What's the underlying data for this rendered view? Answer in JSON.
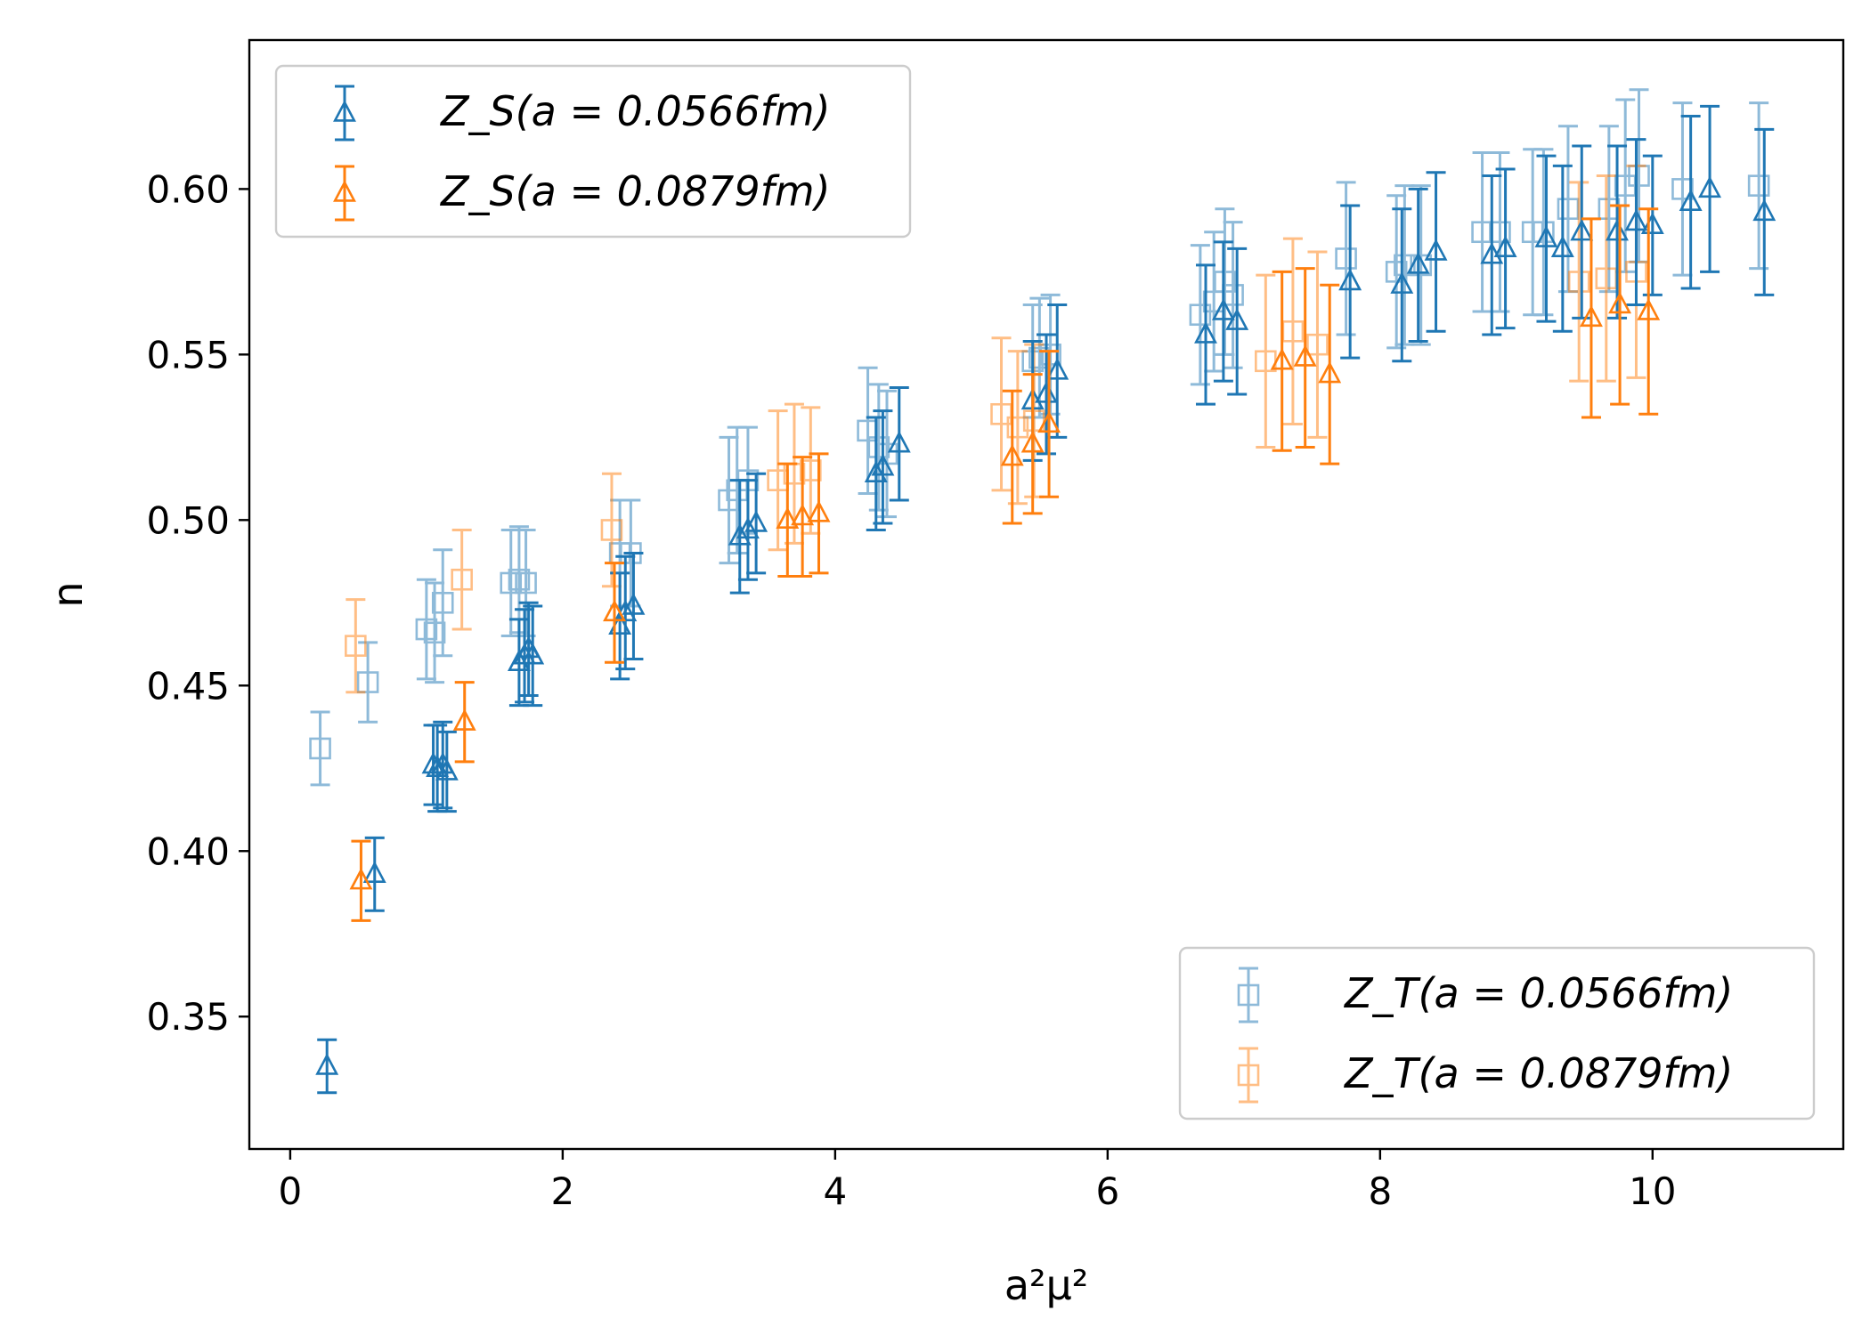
{
  "chart_data": {
    "type": "scatter",
    "title": "",
    "xlabel": "a²μ²",
    "ylabel": "n",
    "xlim": [
      -0.3,
      11.4
    ],
    "ylim": [
      0.31,
      0.645
    ],
    "xticks": [
      0,
      2,
      4,
      6,
      8,
      10
    ],
    "yticks": [
      0.35,
      0.4,
      0.45,
      0.5,
      0.55,
      0.6
    ],
    "xtick_labels": [
      "0",
      "2",
      "4",
      "6",
      "8",
      "10"
    ],
    "ytick_labels": [
      "0.35",
      "0.40",
      "0.45",
      "0.50",
      "0.55",
      "0.60"
    ],
    "grid": false,
    "series": [
      {
        "name": "Z_S(a = 0.0566fm)",
        "legend": "upper left",
        "color": "#1f77b4",
        "marker": "triangle",
        "alpha": 1.0,
        "points": [
          {
            "x": 0.27,
            "y": 0.335,
            "err": 0.008
          },
          {
            "x": 0.62,
            "y": 0.393,
            "err": 0.011
          },
          {
            "x": 1.05,
            "y": 0.426,
            "err": 0.012
          },
          {
            "x": 1.08,
            "y": 0.425,
            "err": 0.013
          },
          {
            "x": 1.12,
            "y": 0.426,
            "err": 0.013
          },
          {
            "x": 1.15,
            "y": 0.424,
            "err": 0.012
          },
          {
            "x": 1.68,
            "y": 0.457,
            "err": 0.013
          },
          {
            "x": 1.72,
            "y": 0.459,
            "err": 0.014
          },
          {
            "x": 1.75,
            "y": 0.461,
            "err": 0.014
          },
          {
            "x": 1.78,
            "y": 0.459,
            "err": 0.015
          },
          {
            "x": 2.42,
            "y": 0.468,
            "err": 0.016
          },
          {
            "x": 2.46,
            "y": 0.472,
            "err": 0.017
          },
          {
            "x": 2.52,
            "y": 0.474,
            "err": 0.016
          },
          {
            "x": 3.3,
            "y": 0.495,
            "err": 0.017
          },
          {
            "x": 3.36,
            "y": 0.497,
            "err": 0.015
          },
          {
            "x": 3.42,
            "y": 0.499,
            "err": 0.015
          },
          {
            "x": 4.3,
            "y": 0.514,
            "err": 0.017
          },
          {
            "x": 4.35,
            "y": 0.516,
            "err": 0.017
          },
          {
            "x": 4.47,
            "y": 0.523,
            "err": 0.017
          },
          {
            "x": 5.45,
            "y": 0.536,
            "err": 0.018
          },
          {
            "x": 5.55,
            "y": 0.538,
            "err": 0.018
          },
          {
            "x": 5.63,
            "y": 0.545,
            "err": 0.02
          },
          {
            "x": 6.72,
            "y": 0.556,
            "err": 0.021
          },
          {
            "x": 6.85,
            "y": 0.563,
            "err": 0.021
          },
          {
            "x": 6.95,
            "y": 0.56,
            "err": 0.022
          },
          {
            "x": 7.78,
            "y": 0.572,
            "err": 0.023
          },
          {
            "x": 8.16,
            "y": 0.571,
            "err": 0.023
          },
          {
            "x": 8.28,
            "y": 0.577,
            "err": 0.023
          },
          {
            "x": 8.41,
            "y": 0.581,
            "err": 0.024
          },
          {
            "x": 8.82,
            "y": 0.58,
            "err": 0.024
          },
          {
            "x": 8.92,
            "y": 0.582,
            "err": 0.024
          },
          {
            "x": 9.22,
            "y": 0.585,
            "err": 0.025
          },
          {
            "x": 9.34,
            "y": 0.582,
            "err": 0.025
          },
          {
            "x": 9.48,
            "y": 0.587,
            "err": 0.026
          },
          {
            "x": 9.74,
            "y": 0.587,
            "err": 0.026
          },
          {
            "x": 9.88,
            "y": 0.59,
            "err": 0.025
          },
          {
            "x": 10.0,
            "y": 0.589,
            "err": 0.021
          },
          {
            "x": 10.28,
            "y": 0.596,
            "err": 0.026
          },
          {
            "x": 10.42,
            "y": 0.6,
            "err": 0.025
          },
          {
            "x": 10.82,
            "y": 0.593,
            "err": 0.025
          }
        ]
      },
      {
        "name": "Z_S(a = 0.0879fm)",
        "legend": "upper left",
        "color": "#ff7f0e",
        "marker": "triangle",
        "alpha": 1.0,
        "points": [
          {
            "x": 0.52,
            "y": 0.391,
            "err": 0.012
          },
          {
            "x": 1.28,
            "y": 0.439,
            "err": 0.012
          },
          {
            "x": 2.38,
            "y": 0.472,
            "err": 0.015
          },
          {
            "x": 3.65,
            "y": 0.5,
            "err": 0.017
          },
          {
            "x": 3.76,
            "y": 0.501,
            "err": 0.018
          },
          {
            "x": 3.88,
            "y": 0.502,
            "err": 0.018
          },
          {
            "x": 5.3,
            "y": 0.519,
            "err": 0.02
          },
          {
            "x": 5.45,
            "y": 0.523,
            "err": 0.021
          },
          {
            "x": 5.57,
            "y": 0.529,
            "err": 0.022
          },
          {
            "x": 7.28,
            "y": 0.548,
            "err": 0.027
          },
          {
            "x": 7.45,
            "y": 0.549,
            "err": 0.027
          },
          {
            "x": 7.63,
            "y": 0.544,
            "err": 0.027
          },
          {
            "x": 9.55,
            "y": 0.561,
            "err": 0.03
          },
          {
            "x": 9.76,
            "y": 0.565,
            "err": 0.03
          },
          {
            "x": 9.97,
            "y": 0.563,
            "err": 0.031
          }
        ]
      },
      {
        "name": "Z_T(a = 0.0566fm)",
        "legend": "lower right",
        "color": "#1f77b4",
        "marker": "square",
        "alpha": 0.5,
        "points": [
          {
            "x": 0.22,
            "y": 0.431,
            "err": 0.011
          },
          {
            "x": 0.57,
            "y": 0.451,
            "err": 0.012
          },
          {
            "x": 1.0,
            "y": 0.467,
            "err": 0.015
          },
          {
            "x": 1.06,
            "y": 0.466,
            "err": 0.015
          },
          {
            "x": 1.12,
            "y": 0.475,
            "err": 0.016
          },
          {
            "x": 1.62,
            "y": 0.481,
            "err": 0.016
          },
          {
            "x": 1.68,
            "y": 0.482,
            "err": 0.016
          },
          {
            "x": 1.73,
            "y": 0.481,
            "err": 0.016
          },
          {
            "x": 2.42,
            "y": 0.49,
            "err": 0.016
          },
          {
            "x": 2.5,
            "y": 0.49,
            "err": 0.016
          },
          {
            "x": 3.22,
            "y": 0.506,
            "err": 0.019
          },
          {
            "x": 3.28,
            "y": 0.509,
            "err": 0.019
          },
          {
            "x": 3.36,
            "y": 0.512,
            "err": 0.016
          },
          {
            "x": 4.24,
            "y": 0.527,
            "err": 0.019
          },
          {
            "x": 4.32,
            "y": 0.522,
            "err": 0.019
          },
          {
            "x": 4.38,
            "y": 0.52,
            "err": 0.019
          },
          {
            "x": 5.45,
            "y": 0.548,
            "err": 0.017
          },
          {
            "x": 5.5,
            "y": 0.549,
            "err": 0.018
          },
          {
            "x": 5.58,
            "y": 0.55,
            "err": 0.018
          },
          {
            "x": 6.68,
            "y": 0.562,
            "err": 0.021
          },
          {
            "x": 6.78,
            "y": 0.566,
            "err": 0.021
          },
          {
            "x": 6.86,
            "y": 0.572,
            "err": 0.022
          },
          {
            "x": 6.92,
            "y": 0.568,
            "err": 0.022
          },
          {
            "x": 7.75,
            "y": 0.579,
            "err": 0.023
          },
          {
            "x": 8.12,
            "y": 0.575,
            "err": 0.023
          },
          {
            "x": 8.18,
            "y": 0.577,
            "err": 0.024
          },
          {
            "x": 8.3,
            "y": 0.577,
            "err": 0.024
          },
          {
            "x": 8.75,
            "y": 0.587,
            "err": 0.024
          },
          {
            "x": 8.88,
            "y": 0.587,
            "err": 0.024
          },
          {
            "x": 9.12,
            "y": 0.587,
            "err": 0.025
          },
          {
            "x": 9.2,
            "y": 0.587,
            "err": 0.025
          },
          {
            "x": 9.38,
            "y": 0.594,
            "err": 0.025
          },
          {
            "x": 9.68,
            "y": 0.594,
            "err": 0.025
          },
          {
            "x": 9.8,
            "y": 0.601,
            "err": 0.026
          },
          {
            "x": 9.9,
            "y": 0.604,
            "err": 0.026
          },
          {
            "x": 10.22,
            "y": 0.6,
            "err": 0.026
          },
          {
            "x": 10.78,
            "y": 0.601,
            "err": 0.025
          }
        ]
      },
      {
        "name": "Z_T(a = 0.0879fm)",
        "legend": "lower right",
        "color": "#ff7f0e",
        "marker": "square",
        "alpha": 0.5,
        "points": [
          {
            "x": 0.48,
            "y": 0.462,
            "err": 0.014
          },
          {
            "x": 1.26,
            "y": 0.482,
            "err": 0.015
          },
          {
            "x": 2.36,
            "y": 0.497,
            "err": 0.017
          },
          {
            "x": 3.58,
            "y": 0.512,
            "err": 0.021
          },
          {
            "x": 3.7,
            "y": 0.514,
            "err": 0.021
          },
          {
            "x": 3.82,
            "y": 0.515,
            "err": 0.019
          },
          {
            "x": 5.22,
            "y": 0.532,
            "err": 0.023
          },
          {
            "x": 5.34,
            "y": 0.528,
            "err": 0.023
          },
          {
            "x": 5.46,
            "y": 0.53,
            "err": 0.023
          },
          {
            "x": 7.16,
            "y": 0.548,
            "err": 0.026
          },
          {
            "x": 7.36,
            "y": 0.557,
            "err": 0.028
          },
          {
            "x": 7.54,
            "y": 0.553,
            "err": 0.028
          },
          {
            "x": 9.46,
            "y": 0.572,
            "err": 0.03
          },
          {
            "x": 9.66,
            "y": 0.573,
            "err": 0.031
          },
          {
            "x": 9.88,
            "y": 0.575,
            "err": 0.032
          }
        ]
      }
    ]
  }
}
